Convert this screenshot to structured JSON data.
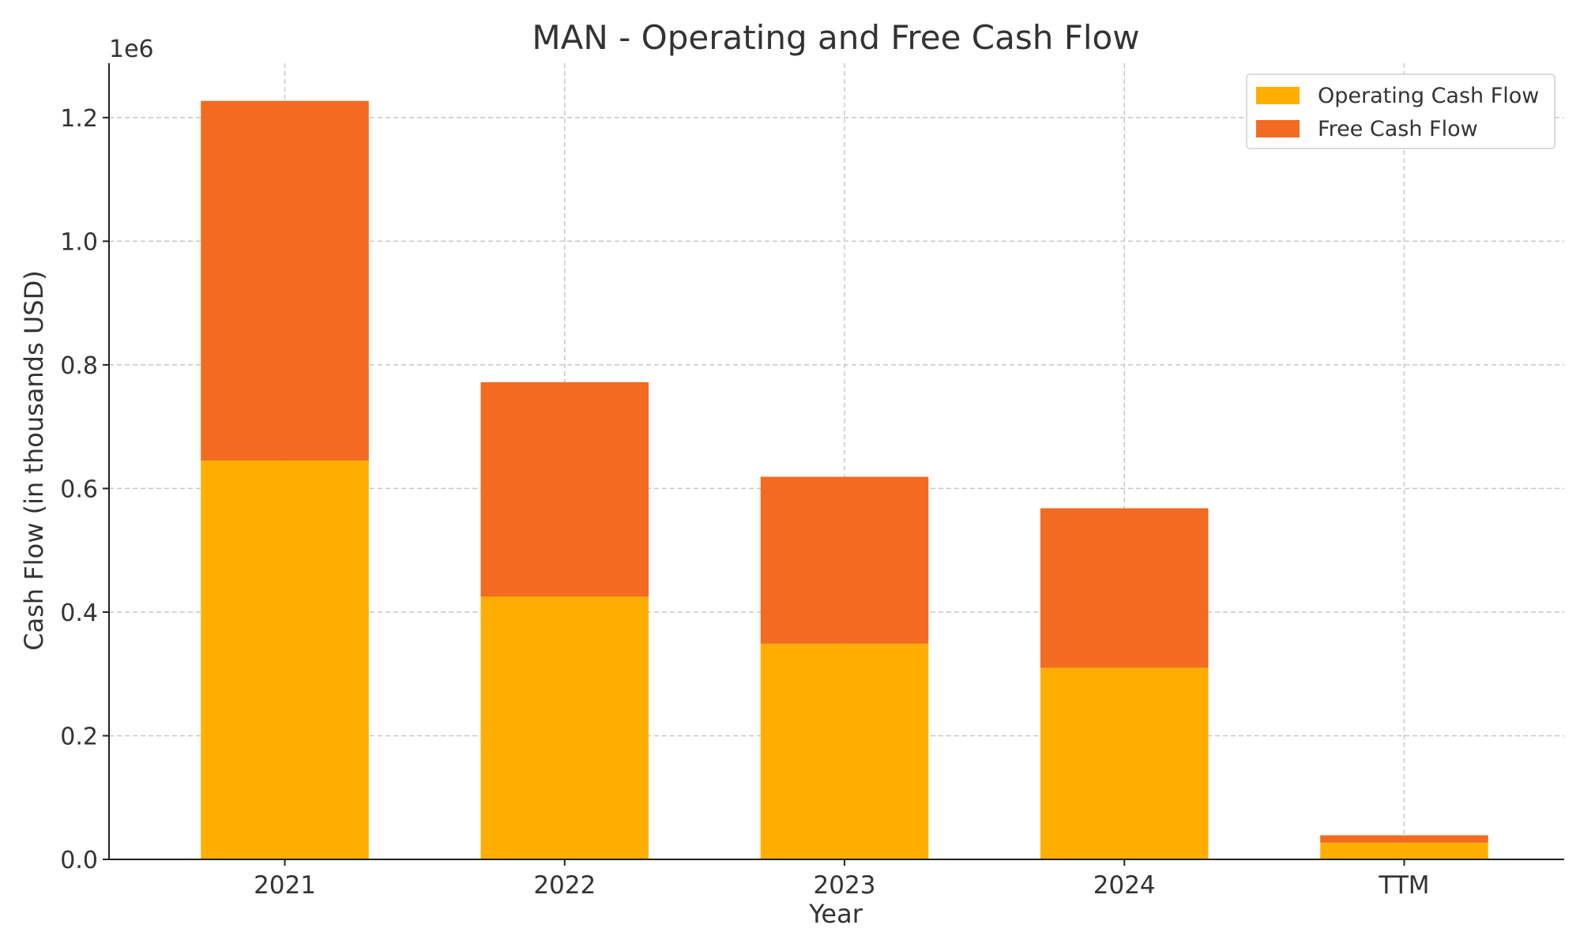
{
  "chart_data": {
    "type": "bar",
    "stacked": true,
    "title": "MAN - Operating and Free Cash Flow",
    "xlabel": "Year",
    "ylabel": "Cash Flow (in thousands USD)",
    "y_multiplier_label": "1e6",
    "categories": [
      "2021",
      "2022",
      "2023",
      "2024",
      "TTM"
    ],
    "series": [
      {
        "name": "Operating Cash Flow",
        "color": "#FFAE00",
        "values": [
          645000,
          425000,
          349000,
          310000,
          27000
        ]
      },
      {
        "name": "Free Cash Flow",
        "color": "#F26B21",
        "values": [
          582000,
          347000,
          270000,
          258000,
          12000
        ]
      }
    ],
    "ylim": [
      0,
      1288000
    ],
    "yticks": [
      0,
      200000,
      400000,
      600000,
      800000,
      1000000,
      1200000
    ],
    "ytick_labels": [
      "0.0",
      "0.2",
      "0.4",
      "0.6",
      "0.8",
      "1.0",
      "1.2"
    ],
    "grid": true,
    "legend_position": "top-right"
  }
}
